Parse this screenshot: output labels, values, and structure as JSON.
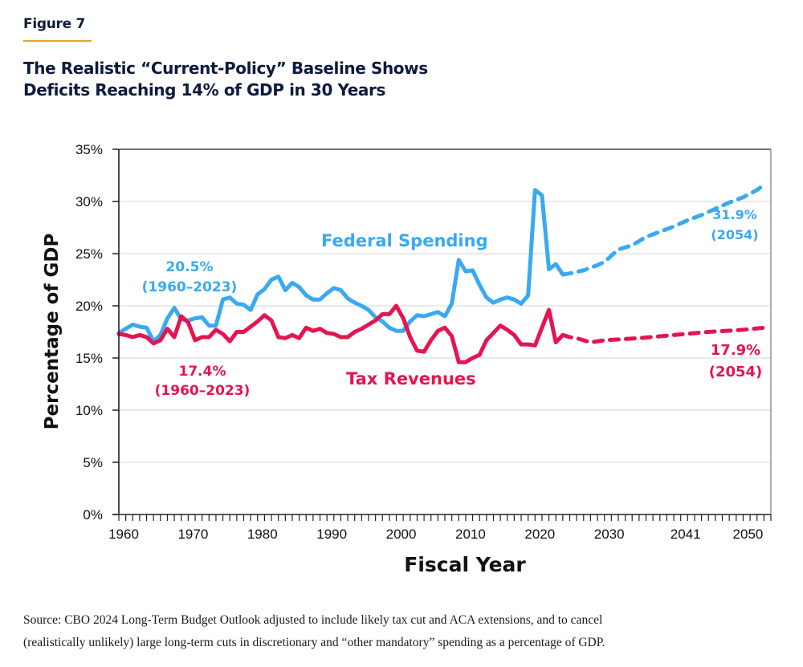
{
  "figure_label": "Figure 7",
  "title_lines": [
    "The Realistic “Current-Policy” Baseline Shows",
    "Deficits Reaching 14% of GDP in 30 Years"
  ],
  "source_lines": [
    "Source: CBO 2024 Long-Term Budget Outlook adjusted to include likely tax cut and ACA extensions, and to cancel",
    "(realistically unlikely) large long-term cuts in discretionary and “other mandatory” spending as a percentage of GDP."
  ],
  "colors": {
    "spending": "#39a9f2",
    "revenues": "#e5154f",
    "grid": "#dddddd",
    "axis": "#222222",
    "accent_rule": "#f0a020"
  },
  "chart_data": {
    "type": "line",
    "title": "The Realistic “Current-Policy” Baseline Shows Deficits Reaching 14% of GDP in 30 Years",
    "xlabel": "Fiscal Year",
    "ylabel": "Percentage of GDP",
    "xlim": [
      1960,
      2054
    ],
    "ylim": [
      0,
      35
    ],
    "grid": true,
    "x_tick_values": [
      1960,
      1970,
      1980,
      1990,
      2000,
      2010,
      2020,
      2030,
      2041,
      2050
    ],
    "x_tick_labels": [
      "1960",
      "1970",
      "1980",
      "1990",
      "2000",
      "2010",
      "2020",
      "2030",
      "2041",
      "2050"
    ],
    "y_tick_values": [
      0,
      5,
      10,
      15,
      20,
      25,
      30,
      35
    ],
    "y_tick_labels": [
      "0%",
      "5%",
      "10%",
      "15%",
      "20%",
      "25%",
      "30%",
      "35%"
    ],
    "series": [
      {
        "name": "Federal Spending",
        "style": "solid",
        "x": [
          1960,
          1961,
          1962,
          1963,
          1964,
          1965,
          1966,
          1967,
          1968,
          1969,
          1970,
          1971,
          1972,
          1973,
          1974,
          1975,
          1976,
          1977,
          1978,
          1979,
          1980,
          1981,
          1982,
          1983,
          1984,
          1985,
          1986,
          1987,
          1988,
          1989,
          1990,
          1991,
          1992,
          1993,
          1994,
          1995,
          1996,
          1997,
          1998,
          1999,
          2000,
          2001,
          2002,
          2003,
          2004,
          2005,
          2006,
          2007,
          2008,
          2009,
          2010,
          2011,
          2012,
          2013,
          2014,
          2015,
          2016,
          2017,
          2018,
          2019,
          2020,
          2021,
          2022,
          2023,
          2024
        ],
        "values": [
          17.4,
          17.8,
          18.2,
          18.0,
          17.9,
          16.6,
          17.2,
          18.8,
          19.8,
          18.7,
          18.6,
          18.8,
          18.9,
          18.1,
          18.1,
          20.6,
          20.8,
          20.2,
          20.1,
          19.6,
          21.1,
          21.6,
          22.5,
          22.8,
          21.5,
          22.2,
          21.8,
          21.0,
          20.6,
          20.6,
          21.2,
          21.7,
          21.5,
          20.7,
          20.3,
          20.0,
          19.6,
          18.9,
          18.5,
          17.9,
          17.6,
          17.6,
          18.5,
          19.1,
          19.0,
          19.2,
          19.4,
          19.0,
          20.2,
          24.4,
          23.3,
          23.4,
          22.0,
          20.8,
          20.3,
          20.6,
          20.8,
          20.6,
          20.2,
          21.0,
          31.1,
          30.6,
          23.5,
          24.0,
          23.0
        ]
      },
      {
        "name": "Federal Spending (projection)",
        "style": "dashed",
        "x": [
          2024,
          2025,
          2027,
          2029,
          2030,
          2032,
          2034,
          2036,
          2038,
          2040,
          2042,
          2044,
          2046,
          2048,
          2050,
          2052,
          2053
        ],
        "values": [
          23.0,
          23.1,
          23.4,
          23.9,
          24.2,
          25.4,
          25.8,
          26.6,
          27.1,
          27.6,
          28.2,
          28.7,
          29.3,
          29.9,
          30.4,
          31.1,
          31.6
        ]
      },
      {
        "name": "Tax Revenues",
        "style": "solid",
        "x": [
          1960,
          1961,
          1962,
          1963,
          1964,
          1965,
          1966,
          1967,
          1968,
          1969,
          1970,
          1971,
          1972,
          1973,
          1974,
          1975,
          1976,
          1977,
          1978,
          1979,
          1980,
          1981,
          1982,
          1983,
          1984,
          1985,
          1986,
          1987,
          1988,
          1989,
          1990,
          1991,
          1992,
          1993,
          1994,
          1995,
          1996,
          1997,
          1998,
          1999,
          2000,
          2001,
          2002,
          2003,
          2004,
          2005,
          2006,
          2007,
          2008,
          2009,
          2010,
          2011,
          2012,
          2013,
          2014,
          2015,
          2016,
          2017,
          2018,
          2019,
          2020,
          2021,
          2022,
          2023,
          2024
        ],
        "values": [
          17.3,
          17.2,
          17.0,
          17.2,
          17.0,
          16.4,
          16.7,
          17.8,
          17.0,
          19.0,
          18.4,
          16.7,
          17.0,
          17.0,
          17.7,
          17.3,
          16.6,
          17.5,
          17.5,
          18.0,
          18.5,
          19.1,
          18.6,
          17.0,
          16.9,
          17.2,
          16.9,
          17.9,
          17.6,
          17.8,
          17.4,
          17.3,
          17.0,
          17.0,
          17.5,
          17.8,
          18.2,
          18.6,
          19.2,
          19.2,
          20.0,
          18.8,
          17.0,
          15.7,
          15.6,
          16.7,
          17.6,
          17.9,
          17.1,
          14.6,
          14.6,
          15.0,
          15.3,
          16.7,
          17.4,
          18.1,
          17.7,
          17.2,
          16.3,
          16.3,
          16.2,
          17.9,
          19.6,
          16.5,
          17.2
        ]
      },
      {
        "name": "Tax Revenues (projection)",
        "style": "dashed",
        "x": [
          2024,
          2025,
          2026,
          2028,
          2030,
          2035,
          2040,
          2045,
          2050,
          2053
        ],
        "values": [
          17.2,
          17.0,
          16.9,
          16.5,
          16.7,
          16.9,
          17.2,
          17.5,
          17.7,
          17.9
        ]
      }
    ],
    "annotations": [
      {
        "text": "Federal Spending",
        "series": "spending",
        "size": "large"
      },
      {
        "text": "20.5%",
        "series": "spending"
      },
      {
        "text": "(1960–2023)",
        "series": "spending"
      },
      {
        "text": "31.9%",
        "series": "spending"
      },
      {
        "text": "(2054)",
        "series": "spending"
      },
      {
        "text": "Tax Revenues",
        "series": "revenues",
        "size": "large"
      },
      {
        "text": "17.4%",
        "series": "revenues"
      },
      {
        "text": "(1960–2023)",
        "series": "revenues"
      },
      {
        "text": "17.9%",
        "series": "revenues"
      },
      {
        "text": "(2054)",
        "series": "revenues",
        "size": "medium"
      }
    ],
    "legend": "none"
  }
}
